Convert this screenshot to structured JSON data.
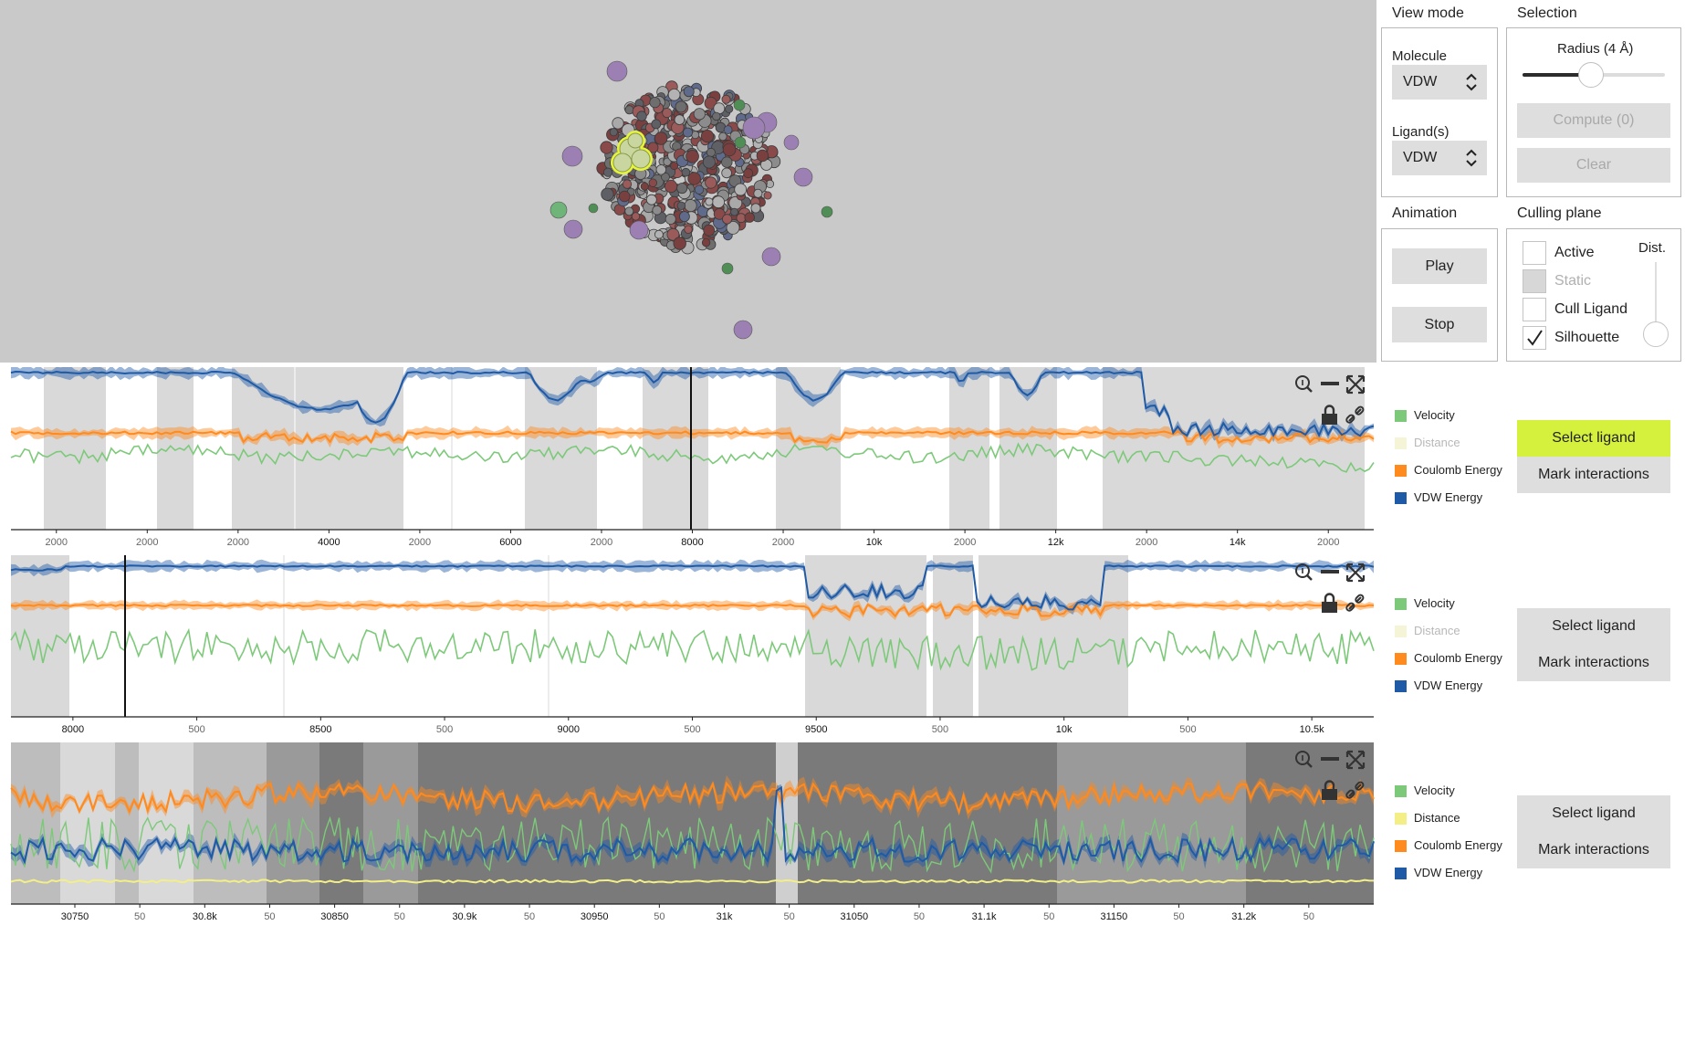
{
  "view_mode": {
    "title": "View mode",
    "molecule": {
      "label": "Molecule",
      "value": "VDW"
    },
    "ligands": {
      "label": "Ligand(s)",
      "value": "VDW"
    }
  },
  "selection": {
    "title": "Selection",
    "radius_label": "Radius (4 Å)",
    "radius_level": 0.48,
    "compute_label": "Compute (0)",
    "clear_label": "Clear"
  },
  "animation": {
    "title": "Animation",
    "play_label": "Play",
    "stop_label": "Stop"
  },
  "culling_plane": {
    "title": "Culling plane",
    "dist_label": "Dist.",
    "options": [
      {
        "label": "Active",
        "checked": false,
        "disabled": false
      },
      {
        "label": "Static",
        "checked": false,
        "disabled": true
      },
      {
        "label": "Cull Ligand",
        "checked": false,
        "disabled": false
      },
      {
        "label": "Silhouette",
        "checked": true,
        "disabled": false
      }
    ]
  },
  "colors": {
    "velocity": "#7dc97a",
    "distance": "#f4f0b4",
    "coulomb": "#ff8a1e",
    "vdw": "#1f5aa6",
    "select_highlight": "#d6f03e"
  },
  "icons": [
    "zoom-icon",
    "minimize-icon",
    "fullscreen-icon",
    "lock-icon",
    "link-icon",
    "checkmark-icon",
    "updown-arrows-icon"
  ],
  "charts": [
    {
      "ticks": [
        "2000",
        "2000",
        "2000",
        "4000",
        "2000",
        "6000",
        "2000",
        "8000",
        "2000",
        "10k",
        "2000",
        "12k",
        "2000",
        "14k",
        "2000"
      ],
      "legend": [
        {
          "label": "Velocity",
          "color": "#7dc97a",
          "dim": false
        },
        {
          "label": "Distance",
          "color": "#f6f4d6",
          "dim": true
        },
        {
          "label": "Coulomb Energy",
          "color": "#ff8a1e",
          "dim": false
        },
        {
          "label": "VDW Energy",
          "color": "#1f5aa6",
          "dim": false
        }
      ],
      "select_label": "Select ligand",
      "select_highlight": true,
      "mark_label": "Mark interactions"
    },
    {
      "ticks": [
        "8000",
        "500",
        "8500",
        "500",
        "9000",
        "500",
        "9500",
        "500",
        "10k",
        "500",
        "10.5k"
      ],
      "legend": [
        {
          "label": "Velocity",
          "color": "#7dc97a",
          "dim": false
        },
        {
          "label": "Distance",
          "color": "#f6f4d6",
          "dim": true
        },
        {
          "label": "Coulomb Energy",
          "color": "#ff8a1e",
          "dim": false
        },
        {
          "label": "VDW Energy",
          "color": "#1f5aa6",
          "dim": false
        }
      ],
      "select_label": "Select ligand",
      "select_highlight": false,
      "mark_label": "Mark interactions"
    },
    {
      "ticks": [
        "30750",
        "50",
        "30.8k",
        "50",
        "30850",
        "50",
        "30.9k",
        "50",
        "30950",
        "50",
        "31k",
        "50",
        "31050",
        "50",
        "31.1k",
        "50",
        "31150",
        "50",
        "31.2k",
        "50"
      ],
      "legend": [
        {
          "label": "Velocity",
          "color": "#7dc97a",
          "dim": false
        },
        {
          "label": "Distance",
          "color": "#f3ef86",
          "dim": false
        },
        {
          "label": "Coulomb Energy",
          "color": "#ff8a1e",
          "dim": false
        },
        {
          "label": "VDW Energy",
          "color": "#1f5aa6",
          "dim": false
        }
      ],
      "select_label": "Select ligand",
      "select_highlight": false,
      "mark_label": "Mark interactions"
    }
  ]
}
